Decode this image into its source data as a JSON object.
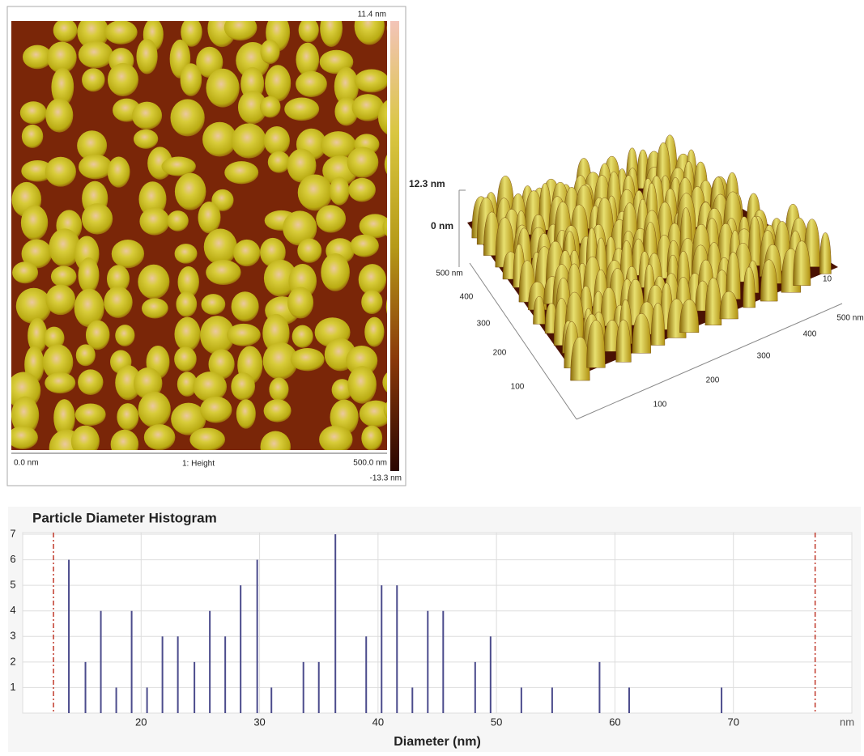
{
  "afm_image": {
    "scale_max": "11.4 nm",
    "scale_min": "-13.3 nm",
    "x_start": "0.0 nm",
    "channel": "1: Height",
    "x_end": "500.0 nm"
  },
  "surface_3d": {
    "z_max": "12.3 nm",
    "z_zero": "0 nm",
    "left_axis": [
      "500 nm",
      "400",
      "300",
      "200",
      "100"
    ],
    "front_axis": [
      "100",
      "200",
      "300",
      "400",
      "500 nm"
    ],
    "back_axis": [
      "10"
    ]
  },
  "chart_data": {
    "type": "bar",
    "title": "Particle Diameter Histogram",
    "x_label": "Diameter (nm)",
    "x_unit": "nm",
    "x": [
      13.9,
      15.3,
      16.6,
      17.9,
      19.2,
      20.5,
      21.8,
      23.1,
      24.5,
      25.8,
      27.1,
      28.4,
      29.8,
      31.0,
      33.7,
      35.0,
      36.4,
      39.0,
      40.3,
      41.6,
      42.9,
      44.2,
      45.5,
      48.2,
      49.5,
      52.1,
      54.7,
      58.7,
      61.2,
      69.0
    ],
    "values": [
      6,
      2,
      4,
      1,
      4,
      1,
      3,
      3,
      2,
      4,
      3,
      5,
      6,
      1,
      2,
      2,
      7,
      3,
      5,
      5,
      1,
      4,
      4,
      2,
      3,
      1,
      1,
      2,
      1,
      1
    ],
    "color": "#4b4b8c",
    "limit_lines": [
      12.6,
      76.9
    ],
    "limit_color": "#c0392b",
    "xlim": [
      10,
      80
    ],
    "ylim": [
      0,
      7
    ],
    "xticks": [
      20,
      30,
      40,
      50,
      60,
      70
    ],
    "yticks": [
      1,
      2,
      3,
      4,
      5,
      6,
      7
    ],
    "grid": true
  }
}
